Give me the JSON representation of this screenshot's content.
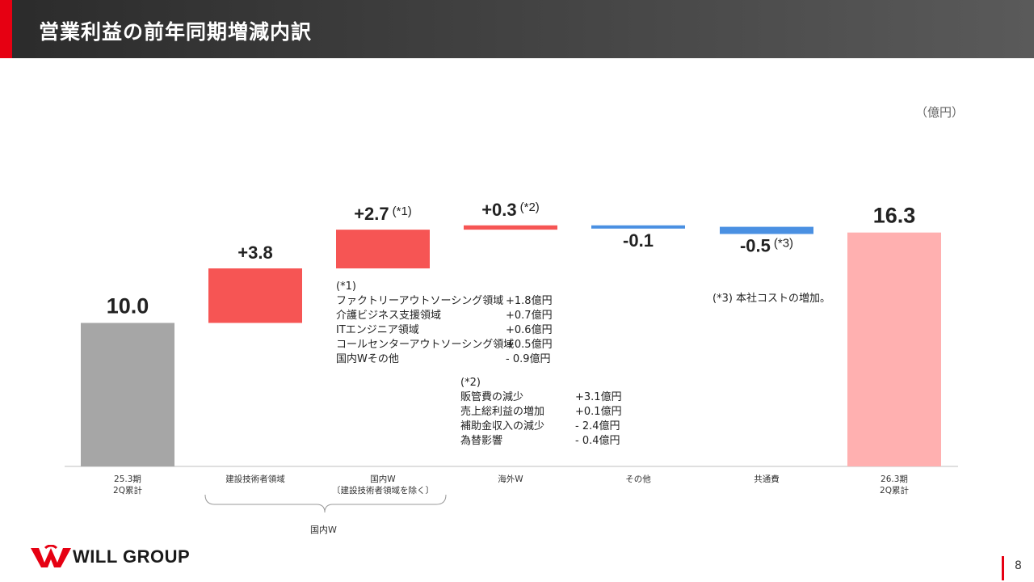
{
  "header": {
    "title": "営業利益の前年同期増減内訳"
  },
  "unit_label": "（億円）",
  "chart_data": {
    "type": "bar",
    "subtype": "waterfall",
    "categories": [
      "25.3期\n2Q累計",
      "建設技術者領域",
      "国内W\n〔建設技術者領域を除く〕",
      "海外W",
      "その他",
      "共通費",
      "26.3期\n2Q累計"
    ],
    "values": [
      10.0,
      3.8,
      2.7,
      0.3,
      -0.1,
      -0.5,
      16.3
    ],
    "value_labels": [
      "10.0",
      "+3.8",
      "+2.7",
      "+0.3",
      "-0.1",
      "-0.5",
      "16.3"
    ],
    "value_sups": [
      "",
      "",
      "(*1)",
      "(*2)",
      "",
      "(*3)",
      ""
    ],
    "kinds": [
      "total",
      "delta",
      "delta",
      "delta",
      "delta",
      "delta",
      "total"
    ],
    "colors": {
      "total_start": "#a6a6a6",
      "increase": "#f65554",
      "decrease": "#4a90e2",
      "total_end": "#ffb0b0"
    },
    "grid": false,
    "legend": "none"
  },
  "notes": {
    "note1": {
      "title": "(*1)",
      "items": [
        {
          "label": "ファクトリーアウトソーシング領域",
          "value": "+1.8億円"
        },
        {
          "label": "介護ビジネス支援領域",
          "value": "+0.7億円"
        },
        {
          "label": "ITエンジニア領域",
          "value": "+0.6億円"
        },
        {
          "label": "コールセンターアウトソーシング領域",
          "value": "+0.5億円"
        },
        {
          "label": "国内Wその他",
          "value": "- 0.9億円"
        }
      ]
    },
    "note2": {
      "title": "(*2)",
      "items": [
        {
          "label": "販管費の減少",
          "value": "+3.1億円"
        },
        {
          "label": "売上総利益の増加",
          "value": "+0.1億円"
        },
        {
          "label": "補助金収入の減少",
          "value": "- 2.4億円"
        },
        {
          "label": "為替影響",
          "value": "- 0.4億円"
        }
      ]
    },
    "note3": {
      "text": "(*3) 本社コストの増加。"
    }
  },
  "group_label": "国内W",
  "footer": {
    "logo_text": "WILL GROUP",
    "page_number": "8"
  }
}
